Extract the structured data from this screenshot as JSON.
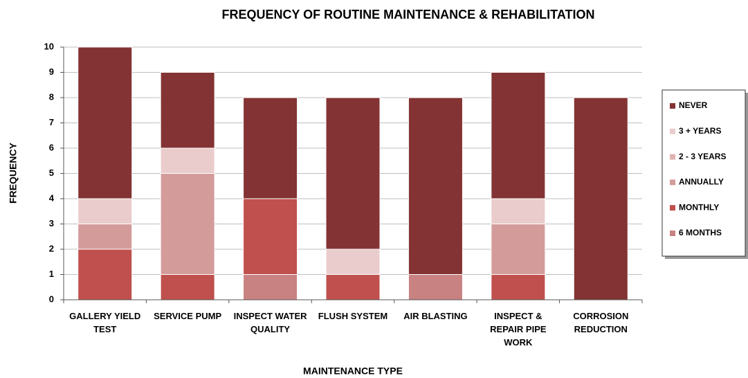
{
  "chart_data": {
    "type": "stacked_bar",
    "title": "FREQUENCY OF ROUTINE MAINTENANCE & REHABILITATION",
    "x_label": "MAINTENANCE TYPE",
    "y_label": "FREQUENCY",
    "categories": [
      "GALLERY YIELD TEST",
      "SERVICE PUMP",
      "INSPECT WATER QUALITY",
      "FLUSH SYSTEM",
      "AIR BLASTING",
      "INSPECT & REPAIR PIPE WORK",
      "CORROSION REDUCTION"
    ],
    "series": [
      {
        "name": "6 MONTHS",
        "color": "#c98282",
        "values": [
          0,
          0,
          1,
          0,
          1,
          0,
          0
        ]
      },
      {
        "name": "MONTHLY",
        "color": "#c0504d",
        "values": [
          2,
          1,
          3,
          1,
          0,
          1,
          0
        ]
      },
      {
        "name": "ANNUALLY",
        "color": "#d49b9b",
        "values": [
          1,
          4,
          0,
          0,
          0,
          2,
          0
        ]
      },
      {
        "name": "2 - 3 YEARS",
        "color": "#dfb2b2",
        "values": [
          0,
          0,
          0,
          0,
          0,
          0,
          0
        ]
      },
      {
        "name": "3 + YEARS",
        "color": "#eacccc",
        "values": [
          1,
          1,
          0,
          1,
          0,
          1,
          0
        ]
      },
      {
        "name": "NEVER",
        "color": "#833333",
        "values": [
          6,
          3,
          4,
          6,
          7,
          5,
          8
        ]
      }
    ],
    "ylim": [
      0,
      10
    ],
    "yticks": [
      0,
      1,
      2,
      3,
      4,
      5,
      6,
      7,
      8,
      9,
      10
    ],
    "grid": true,
    "legend": "right"
  }
}
